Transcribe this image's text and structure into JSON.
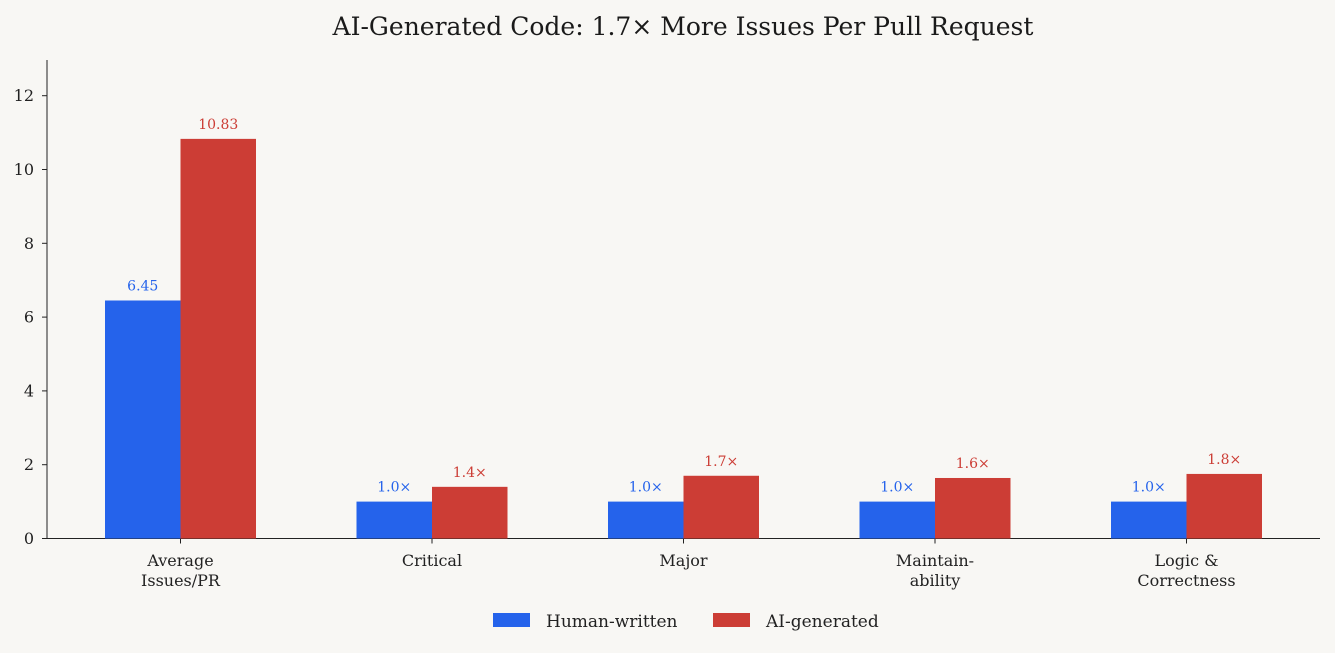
{
  "chart_data": {
    "type": "bar",
    "title": "AI-Generated Code: 1.7× More Issues Per Pull Request",
    "xlabel": "",
    "ylabel": "",
    "ylim": [
      0,
      13
    ],
    "yticks": [
      0,
      2,
      4,
      6,
      8,
      10,
      12
    ],
    "grid": false,
    "legend_position": "bottom-center",
    "categories": [
      [
        "Average",
        "Issues/PR"
      ],
      [
        "Critical"
      ],
      [
        "Major"
      ],
      [
        "Maintain-",
        "ability"
      ],
      [
        "Logic &",
        "Correctness"
      ]
    ],
    "series": [
      {
        "name": "Human-written",
        "color": "#2563eb",
        "values": [
          6.45,
          1.0,
          1.0,
          1.0,
          1.0
        ],
        "labels": [
          "6.45",
          "1.0×",
          "1.0×",
          "1.0×",
          "1.0×"
        ]
      },
      {
        "name": "AI-generated",
        "color": "#cc3d35",
        "values": [
          10.83,
          1.4,
          1.7,
          1.64,
          1.75
        ],
        "labels": [
          "10.83",
          "1.4×",
          "1.7×",
          "1.6×",
          "1.8×"
        ]
      }
    ]
  }
}
